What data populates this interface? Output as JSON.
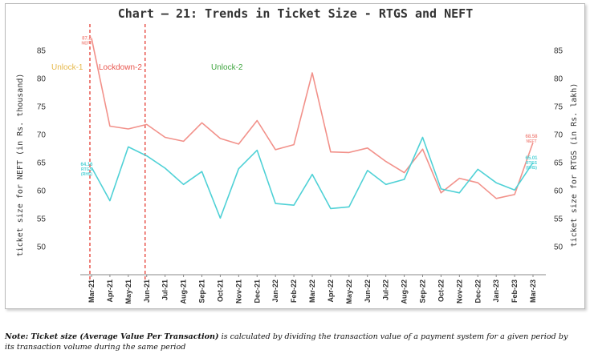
{
  "chart_data": {
    "type": "line",
    "title": "Chart – 21: Trends in Ticket Size - RTGS and NEFT",
    "ylabel_left": "ticket size for NEFT (in Rs. thousand)",
    "ylabel_right": "ticket size for RTGS (in Rs. lakh)",
    "ylim": [
      45,
      90
    ],
    "yticks": [
      50,
      55,
      60,
      65,
      70,
      75,
      80,
      85
    ],
    "categories": [
      "Mar-21",
      "Apr-21",
      "May-21",
      "Jun-21",
      "Jul-21",
      "Aug-21",
      "Sep-21",
      "Oct-21",
      "Nov-21",
      "Dec-21",
      "Jan-22",
      "Feb-22",
      "Mar-22",
      "Apr-22",
      "May-22",
      "Jun-22",
      "Jul-22",
      "Aug-22",
      "Sep-22",
      "Oct-22",
      "Nov-22",
      "Dec-22",
      "Jan-23",
      "Feb-23",
      "Mar-23"
    ],
    "series": [
      {
        "name": "NEFT",
        "color": "#f2918a",
        "values": [
          87.2,
          71.5,
          71.0,
          71.8,
          69.5,
          68.8,
          72.1,
          69.3,
          68.3,
          72.5,
          67.3,
          68.2,
          81.0,
          66.9,
          66.8,
          67.6,
          65.2,
          63.2,
          67.4,
          59.6,
          62.2,
          61.4,
          58.6,
          59.3,
          68.58
        ]
      },
      {
        "name": "RTGS",
        "color": "#4fd1d6",
        "values": [
          64.16,
          58.2,
          67.8,
          66.2,
          64.0,
          61.1,
          63.4,
          55.1,
          63.9,
          67.2,
          57.7,
          57.4,
          62.9,
          56.8,
          57.1,
          63.6,
          61.1,
          62.0,
          69.5,
          60.3,
          59.6,
          63.8,
          61.4,
          60.1,
          65.01
        ]
      }
    ],
    "data_labels": [
      {
        "series": "NEFT",
        "index": 0,
        "lines": [
          "87.2",
          "NEFT"
        ]
      },
      {
        "series": "RTGS",
        "index": 0,
        "lines": [
          "64.16",
          "RTGS",
          "(RHS)"
        ]
      },
      {
        "series": "NEFT",
        "index": 24,
        "lines": [
          "68.58",
          "NEFT"
        ]
      },
      {
        "series": "RTGS",
        "index": 24,
        "lines": [
          "65.01",
          "RTGS",
          "(RHS)"
        ]
      }
    ],
    "phase_markers": [
      {
        "label": "Unlock-1",
        "color": "#e6b84a"
      },
      {
        "label": "Lockdown-2",
        "color": "#e8564e"
      },
      {
        "label": "Unlock-2",
        "color": "#3ea43e"
      }
    ],
    "vlines_at_categories": [
      "Mar-21",
      "Jun-21"
    ],
    "vline_color": "#e8564e"
  },
  "note": {
    "prefix": "Note:",
    "bold_term": "Ticket size (Average Value Per Transaction)",
    "text": "is calculated by dividing the transaction value of a payment system for a given period by",
    "line2": "its transaction volume during the same period"
  }
}
